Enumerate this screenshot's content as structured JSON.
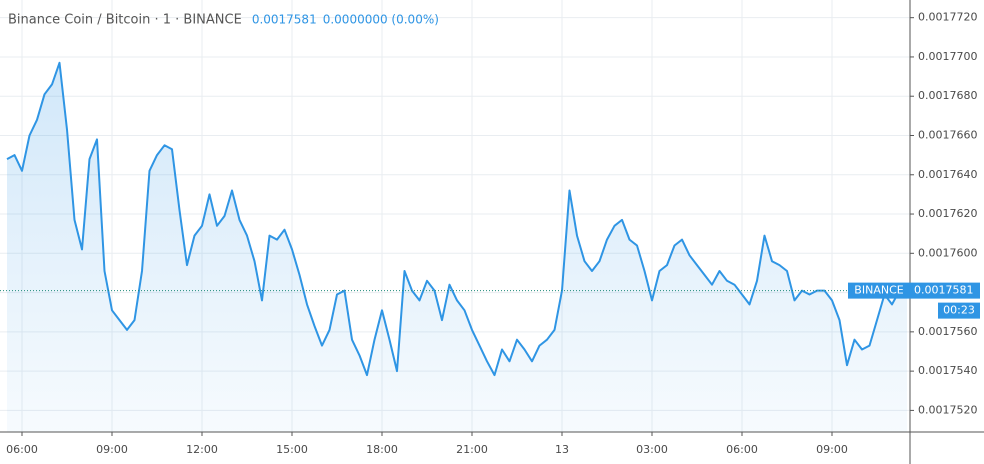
{
  "chart_data": {
    "type": "area",
    "title": "Binance Coin / Bitcoin · 1 · BINANCE",
    "header_price": "0.0017581",
    "header_change": "0.0000000 (0.00%)",
    "color": "#2f95e4",
    "grid": true,
    "ylim": [
      0.0017509,
      0.0017729
    ],
    "yticks": [
      {
        "value": 0.001752,
        "label": "0.0017520"
      },
      {
        "value": 0.001754,
        "label": "0.0017540"
      },
      {
        "value": 0.001756,
        "label": "0.0017560"
      },
      {
        "value": 0.001758,
        "label": "0.0017580"
      },
      {
        "value": 0.00176,
        "label": "0.0017600"
      },
      {
        "value": 0.001762,
        "label": "0.0017620"
      },
      {
        "value": 0.001764,
        "label": "0.0017640"
      },
      {
        "value": 0.001766,
        "label": "0.0017660"
      },
      {
        "value": 0.001768,
        "label": "0.0017680"
      },
      {
        "value": 0.00177,
        "label": "0.0017700"
      },
      {
        "value": 0.001772,
        "label": "0.0017720"
      }
    ],
    "last_price": {
      "value": 0.0017581,
      "label": "0.0017581"
    },
    "last_price_source": "BINANCE",
    "countdown": "00:23",
    "categories": [
      null,
      null,
      "06:00",
      null,
      null,
      null,
      null,
      null,
      null,
      null,
      null,
      null,
      null,
      null,
      "09:00",
      null,
      null,
      null,
      null,
      null,
      null,
      null,
      null,
      null,
      null,
      null,
      "12:00",
      null,
      null,
      null,
      null,
      null,
      null,
      null,
      null,
      null,
      null,
      null,
      "15:00",
      null,
      null,
      null,
      null,
      null,
      null,
      null,
      null,
      null,
      null,
      null,
      "18:00",
      null,
      null,
      null,
      null,
      null,
      null,
      null,
      null,
      null,
      null,
      null,
      "21:00",
      null,
      null,
      null,
      null,
      null,
      null,
      null,
      null,
      null,
      null,
      null,
      "13",
      null,
      null,
      null,
      null,
      null,
      null,
      null,
      null,
      null,
      null,
      null,
      "03:00",
      null,
      null,
      null,
      null,
      null,
      null,
      null,
      null,
      null,
      null,
      null,
      "06:00",
      null,
      null,
      null,
      null,
      null,
      null,
      null,
      null,
      null,
      null,
      null,
      "09:00",
      null,
      null,
      null,
      null,
      null,
      null,
      null,
      null,
      null,
      null
    ],
    "values": [
      0.0017648,
      0.001765,
      0.0017642,
      0.001766,
      0.0017668,
      0.0017681,
      0.0017686,
      0.0017697,
      0.0017663,
      0.0017617,
      0.0017602,
      0.0017648,
      0.0017658,
      0.0017591,
      0.0017571,
      0.0017566,
      0.0017561,
      0.0017566,
      0.0017591,
      0.0017642,
      0.001765,
      0.0017655,
      0.0017653,
      0.0017622,
      0.0017594,
      0.0017609,
      0.0017614,
      0.001763,
      0.0017614,
      0.0017619,
      0.0017632,
      0.0017617,
      0.0017609,
      0.0017596,
      0.0017576,
      0.0017609,
      0.0017607,
      0.0017612,
      0.0017602,
      0.0017589,
      0.0017574,
      0.0017563,
      0.0017553,
      0.0017561,
      0.0017579,
      0.0017581,
      0.0017556,
      0.0017548,
      0.0017538,
      0.0017556,
      0.0017571,
      0.0017556,
      0.001754,
      0.0017591,
      0.0017581,
      0.0017576,
      0.0017586,
      0.0017581,
      0.0017566,
      0.0017584,
      0.0017576,
      0.0017571,
      0.0017561,
      0.0017553,
      0.0017545,
      0.0017538,
      0.0017551,
      0.0017545,
      0.0017556,
      0.0017551,
      0.0017545,
      0.0017553,
      0.0017556,
      0.0017561,
      0.0017581,
      0.0017632,
      0.0017609,
      0.0017596,
      0.0017591,
      0.0017596,
      0.0017607,
      0.0017614,
      0.0017617,
      0.0017607,
      0.0017604,
      0.0017591,
      0.0017576,
      0.0017591,
      0.0017594,
      0.0017604,
      0.0017607,
      0.0017599,
      0.0017594,
      0.0017589,
      0.0017584,
      0.0017591,
      0.0017586,
      0.0017584,
      0.0017579,
      0.0017574,
      0.0017586,
      0.0017609,
      0.0017596,
      0.0017594,
      0.0017591,
      0.0017576,
      0.0017581,
      0.0017579,
      0.0017581,
      0.0017581,
      0.0017576,
      0.0017566,
      0.0017543,
      0.0017556,
      0.0017551,
      0.0017553,
      0.0017566,
      0.0017579,
      0.0017574,
      0.0017581,
      0.0017581
    ]
  }
}
